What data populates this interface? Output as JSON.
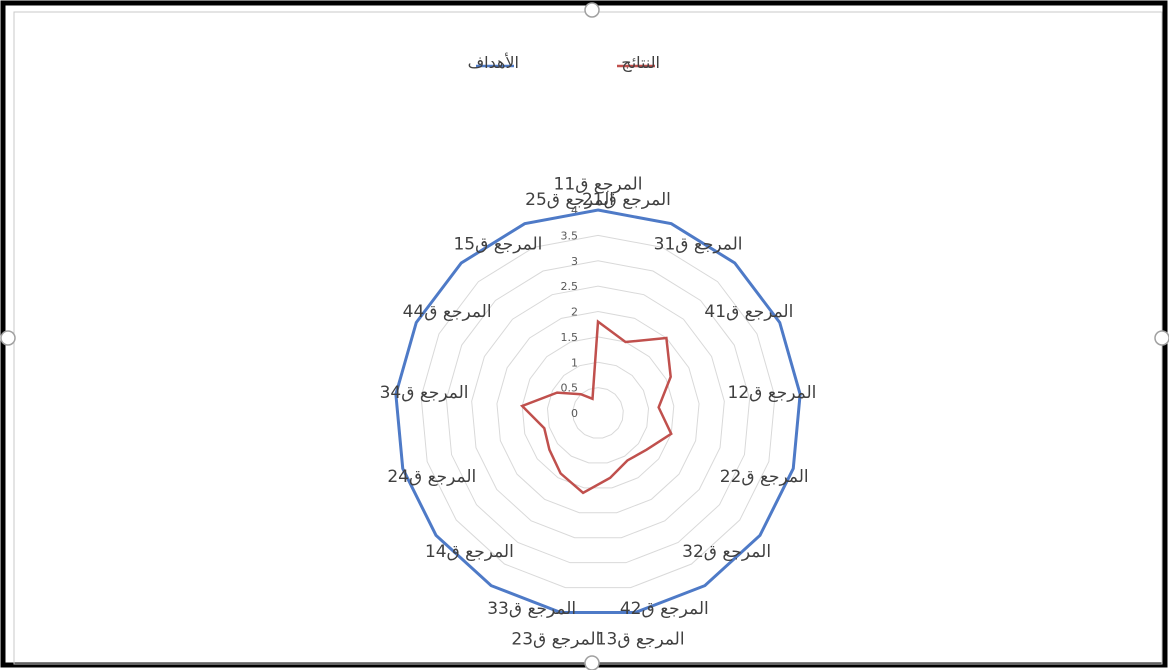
{
  "colors": {
    "targets": "#4e7ac7",
    "results": "#c0504d",
    "grid": "#d9d9d9",
    "frame": "#000000",
    "handle": "#a0a0a0"
  },
  "legend": {
    "targets_label": "الأهداف",
    "results_label": "النتائج"
  },
  "chart_data": {
    "type": "radar",
    "categories": [
      "المرجع ق11",
      "المرجع ق21",
      "المرجع ق31",
      "المرجع ق41",
      "المرجع ق12",
      "المرجع ق22",
      "المرجع ق32",
      "المرجع ق42",
      "المرجع ق13",
      "المرجع ق23",
      "المرجع ق33",
      "المرجع ق14",
      "المرجع ق24",
      "المرجع ق34",
      "المرجع ق44",
      "المرجع ق15",
      "المرجع ق25"
    ],
    "series": [
      {
        "name": "الأهداف",
        "values": [
          4,
          4,
          4,
          4,
          4,
          4,
          4,
          4,
          4,
          4,
          4,
          4,
          4,
          4,
          4,
          4,
          4
        ]
      },
      {
        "name": "النتائج",
        "values": [
          1.8,
          1.5,
          2.0,
          1.6,
          1.2,
          1.5,
          1.2,
          1.1,
          1.3,
          1.6,
          1.4,
          1.2,
          1.1,
          1.5,
          0.9,
          0.5,
          0.3
        ]
      }
    ],
    "ticks": [
      "0",
      "0.5",
      "1",
      "1.5",
      "2",
      "2.5",
      "3",
      "3.5",
      "4"
    ],
    "rlim": [
      0,
      4
    ],
    "grid": true,
    "legend_position": "top"
  }
}
